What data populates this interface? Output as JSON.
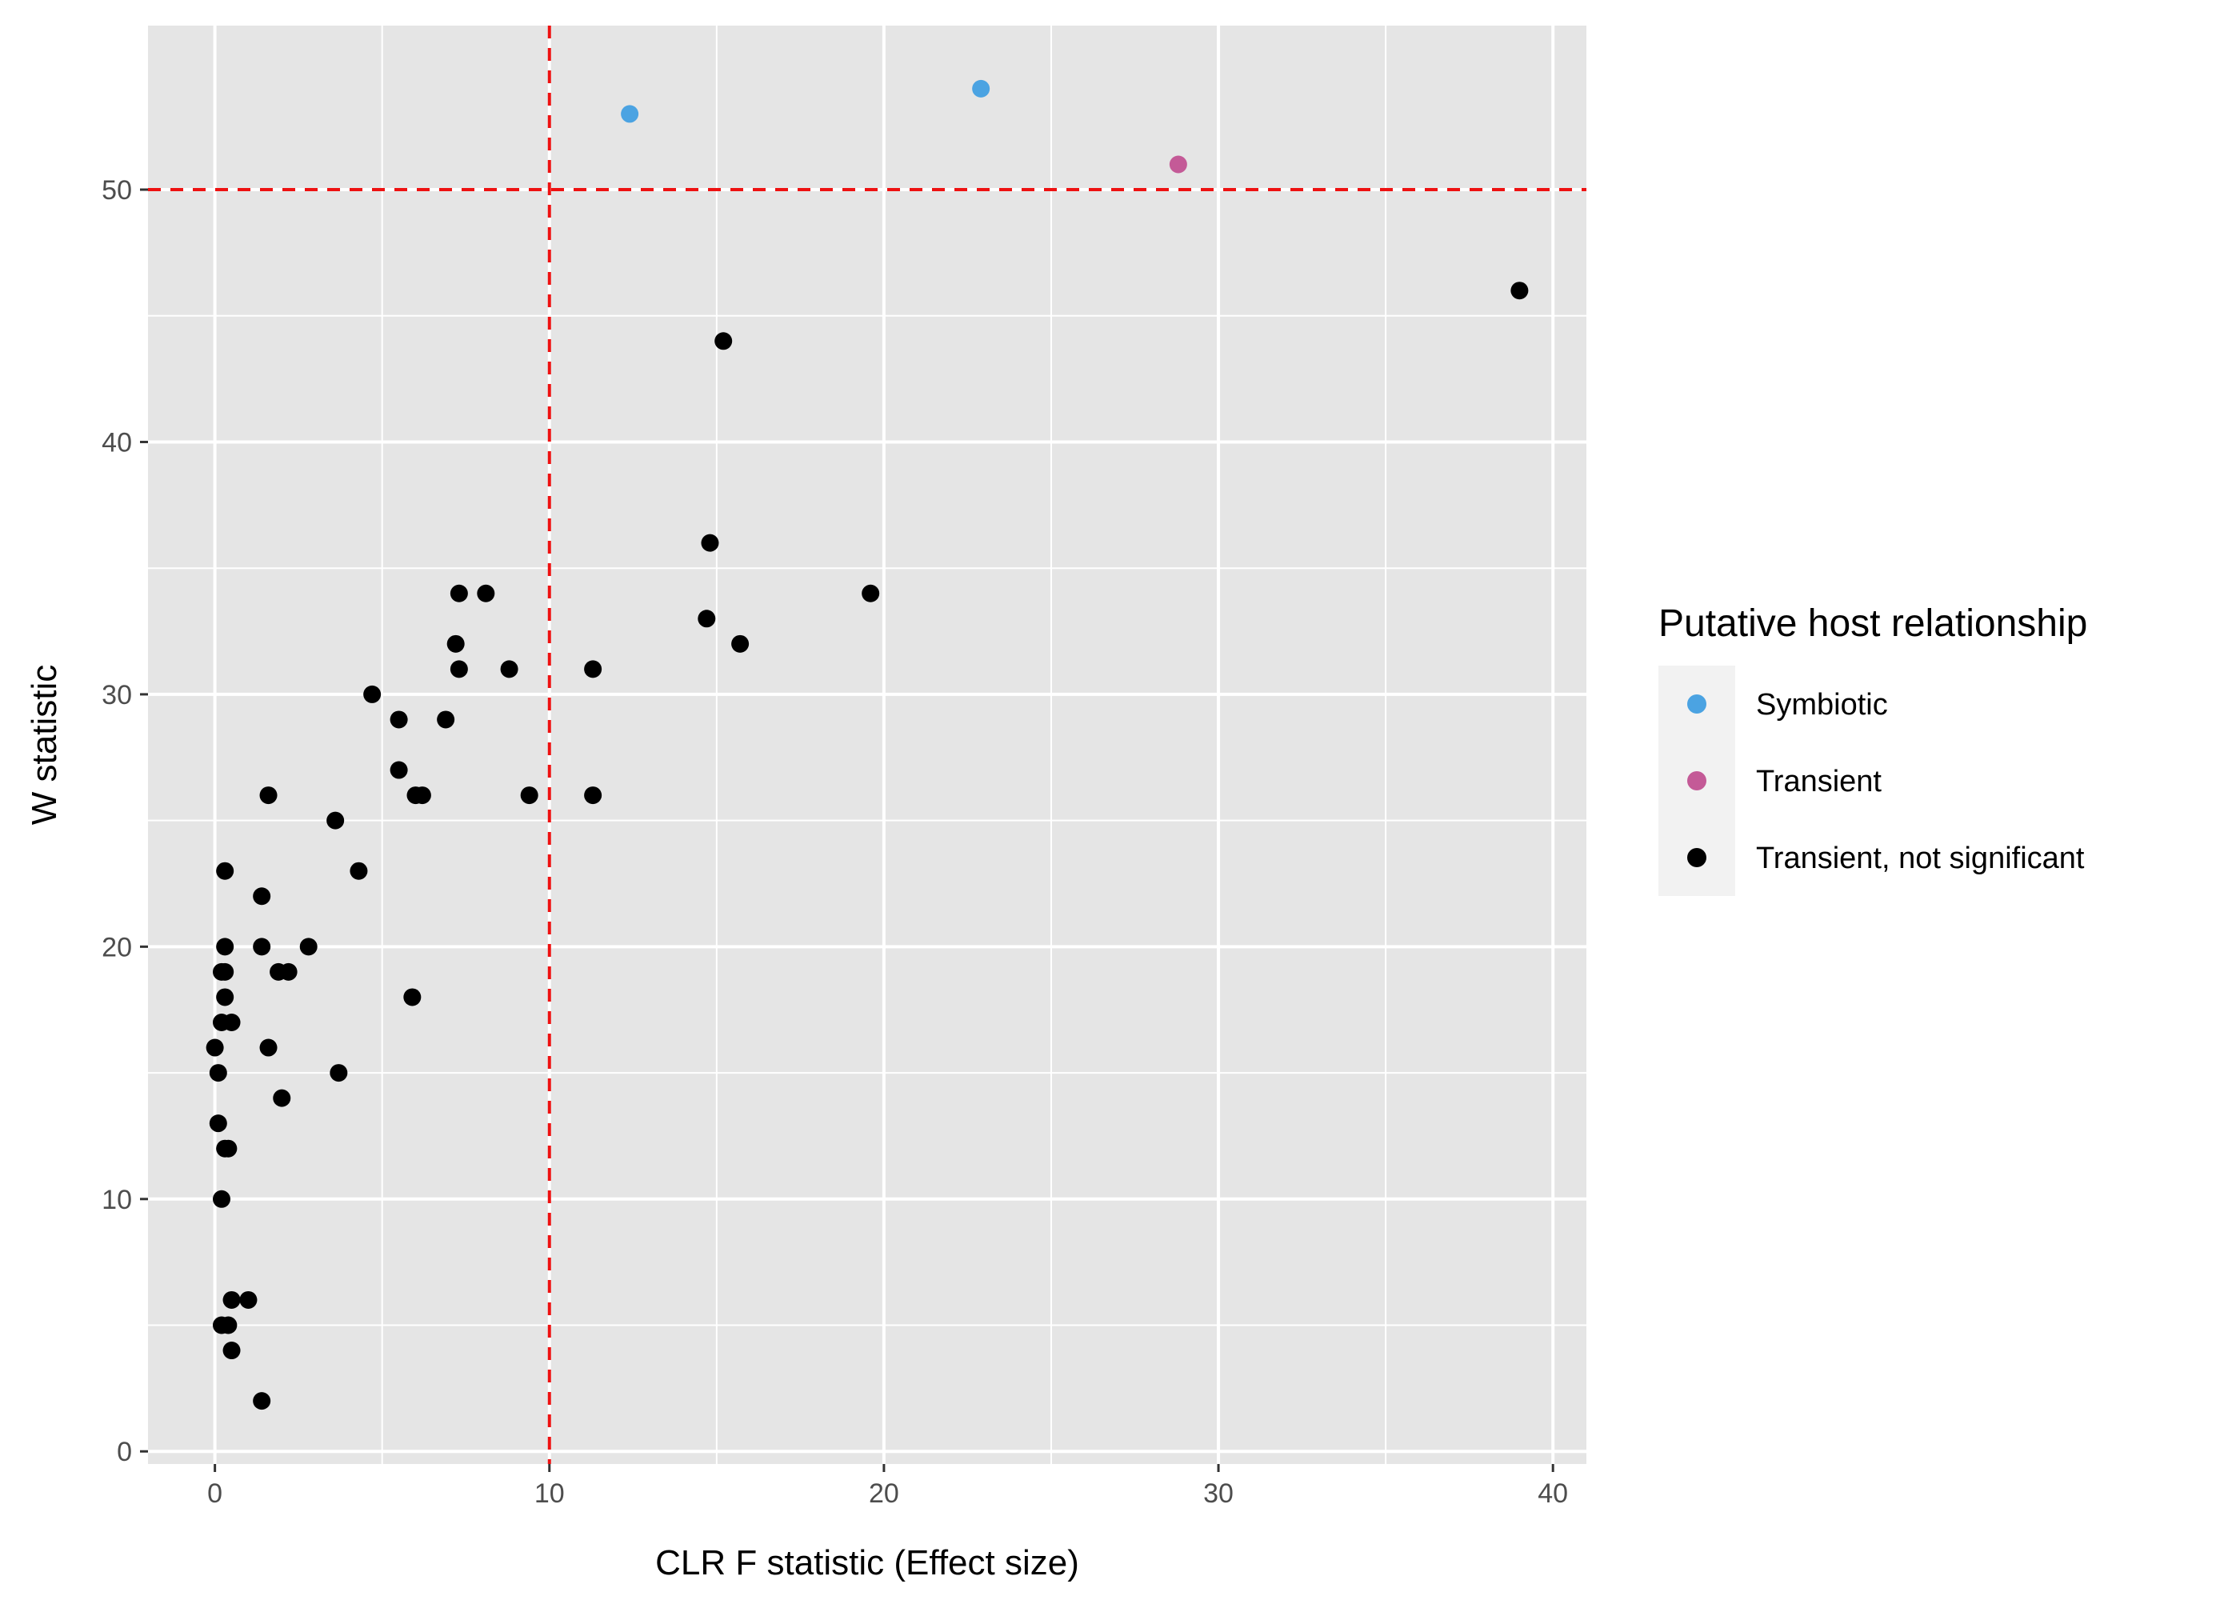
{
  "chart_data": {
    "type": "scatter",
    "title": "",
    "xlabel": "CLR F statistic (Effect size)",
    "ylabel": "W statistic",
    "xlim": [
      -2,
      41
    ],
    "ylim": [
      -0.5,
      56.5
    ],
    "xticks": [
      0,
      10,
      20,
      30,
      40
    ],
    "yticks": [
      0,
      10,
      20,
      30,
      40,
      50
    ],
    "grid": true,
    "background": "#e5e5e5",
    "thresholds": {
      "x": 10,
      "y": 50,
      "color": "#ee1111",
      "style": "dashed"
    },
    "legend": {
      "title": "Putative host relationship",
      "position": "right",
      "entries": [
        {
          "label": "Symbiotic",
          "color": "#4ba3e2"
        },
        {
          "label": "Transient",
          "color": "#c45a97"
        },
        {
          "label": "Transient, not significant",
          "color": "#000000"
        }
      ]
    },
    "series": [
      {
        "name": "Symbiotic",
        "color": "#4ba3e2",
        "points": [
          [
            12.4,
            53
          ],
          [
            22.9,
            54
          ]
        ]
      },
      {
        "name": "Transient",
        "color": "#c45a97",
        "points": [
          [
            28.8,
            51
          ]
        ]
      },
      {
        "name": "Transient, not significant",
        "color": "#000000",
        "points": [
          [
            39.0,
            46
          ],
          [
            15.2,
            44
          ],
          [
            14.8,
            36
          ],
          [
            19.6,
            34
          ],
          [
            14.7,
            33
          ],
          [
            15.7,
            32
          ],
          [
            7.3,
            34
          ],
          [
            8.1,
            34
          ],
          [
            7.2,
            32
          ],
          [
            7.3,
            31
          ],
          [
            8.8,
            31
          ],
          [
            11.3,
            31
          ],
          [
            4.7,
            30
          ],
          [
            5.5,
            29
          ],
          [
            6.9,
            29
          ],
          [
            5.5,
            27
          ],
          [
            6.0,
            26
          ],
          [
            6.2,
            26
          ],
          [
            9.4,
            26
          ],
          [
            11.3,
            26
          ],
          [
            1.6,
            26
          ],
          [
            3.6,
            25
          ],
          [
            0.3,
            23
          ],
          [
            4.3,
            23
          ],
          [
            1.4,
            22
          ],
          [
            0.3,
            20
          ],
          [
            1.4,
            20
          ],
          [
            2.8,
            20
          ],
          [
            0.2,
            19
          ],
          [
            0.3,
            19
          ],
          [
            1.9,
            19
          ],
          [
            2.2,
            19
          ],
          [
            0.3,
            18
          ],
          [
            5.9,
            18
          ],
          [
            0.2,
            17
          ],
          [
            0.5,
            17
          ],
          [
            0.0,
            16
          ],
          [
            1.6,
            16
          ],
          [
            0.1,
            15
          ],
          [
            3.7,
            15
          ],
          [
            2.0,
            14
          ],
          [
            0.1,
            13
          ],
          [
            0.3,
            12
          ],
          [
            0.4,
            12
          ],
          [
            0.2,
            10
          ],
          [
            0.5,
            6
          ],
          [
            1.0,
            6
          ],
          [
            0.2,
            5
          ],
          [
            0.4,
            5
          ],
          [
            0.5,
            4
          ],
          [
            1.4,
            2
          ]
        ]
      }
    ]
  }
}
